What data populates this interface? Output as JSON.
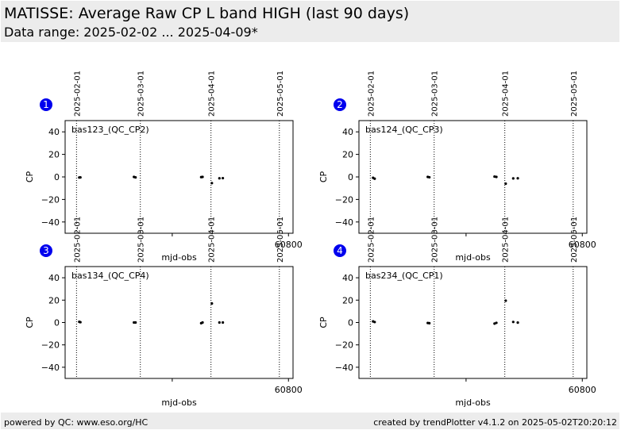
{
  "header": {
    "title": "MATISSE: Average Raw CP L band HIGH (last 90 days)",
    "subtitle": "Data range: 2025-02-02 ... 2025-04-09*"
  },
  "footer": {
    "left": "powered by QC: www.eso.org/HC",
    "right": "created by trendPlotter v4.1.2 on 2025-05-02T20:20:12"
  },
  "colors": {
    "badge": "#0000ee",
    "marker": "#000000",
    "band": "#ececec"
  },
  "chart_data": [
    {
      "type": "scatter",
      "panel": "1",
      "label": "bas123_(QC_CP2)",
      "xlabel": "mjd-obs",
      "ylabel": "CP",
      "xlim": [
        60702,
        60802
      ],
      "ylim": [
        -50,
        50
      ],
      "xticks": [
        60800
      ],
      "yticks": [
        -40,
        -20,
        0,
        20,
        40
      ],
      "date_lines": [
        {
          "label": "2025-02-01",
          "mjd": 60707
        },
        {
          "label": "2025-03-01",
          "mjd": 60735
        },
        {
          "label": "2025-04-01",
          "mjd": 60766
        },
        {
          "label": "2025-05-01",
          "mjd": 60796
        }
      ],
      "points": [
        {
          "x": 60708.2,
          "y": -0.5
        },
        {
          "x": 60708.7,
          "y": -0.4
        },
        {
          "x": 60732.2,
          "y": 0.0
        },
        {
          "x": 60732.9,
          "y": -0.4
        },
        {
          "x": 60761.7,
          "y": -0.2
        },
        {
          "x": 60762.3,
          "y": 0.0
        },
        {
          "x": 60766.4,
          "y": -5.5
        },
        {
          "x": 60769.7,
          "y": -1.2
        },
        {
          "x": 60771.2,
          "y": -1.1
        }
      ]
    },
    {
      "type": "scatter",
      "panel": "2",
      "label": "bas124_(QC_CP3)",
      "xlabel": "mjd-obs",
      "ylabel": "CP",
      "xlim": [
        60702,
        60802
      ],
      "ylim": [
        -50,
        50
      ],
      "xticks": [
        60800
      ],
      "yticks": [
        -40,
        -20,
        0,
        20,
        40
      ],
      "date_lines": [
        {
          "label": "2025-02-01",
          "mjd": 60707
        },
        {
          "label": "2025-03-01",
          "mjd": 60735
        },
        {
          "label": "2025-04-01",
          "mjd": 60766
        },
        {
          "label": "2025-05-01",
          "mjd": 60796
        }
      ],
      "points": [
        {
          "x": 60708.2,
          "y": -0.8
        },
        {
          "x": 60708.9,
          "y": -1.6
        },
        {
          "x": 60732.2,
          "y": 0.0
        },
        {
          "x": 60732.9,
          "y": -0.3
        },
        {
          "x": 60761.5,
          "y": 0.3
        },
        {
          "x": 60762.3,
          "y": 0.0
        },
        {
          "x": 60766.4,
          "y": -6.0
        },
        {
          "x": 60769.7,
          "y": -1.3
        },
        {
          "x": 60771.7,
          "y": -1.2
        }
      ]
    },
    {
      "type": "scatter",
      "panel": "3",
      "label": "bas134_(QC_CP4)",
      "xlabel": "mjd-obs",
      "ylabel": "CP",
      "xlim": [
        60702,
        60802
      ],
      "ylim": [
        -50,
        50
      ],
      "xticks": [
        60800
      ],
      "yticks": [
        -40,
        -20,
        0,
        20,
        40
      ],
      "date_lines": [
        {
          "label": "2025-02-01",
          "mjd": 60707
        },
        {
          "label": "2025-03-01",
          "mjd": 60735
        },
        {
          "label": "2025-04-01",
          "mjd": 60766
        },
        {
          "label": "2025-05-01",
          "mjd": 60796
        }
      ],
      "points": [
        {
          "x": 60708.2,
          "y": 0.6
        },
        {
          "x": 60708.7,
          "y": 0.3
        },
        {
          "x": 60732.2,
          "y": 0.0
        },
        {
          "x": 60732.9,
          "y": 0.0
        },
        {
          "x": 60761.7,
          "y": -0.6
        },
        {
          "x": 60762.3,
          "y": 0.0
        },
        {
          "x": 60766.4,
          "y": 17.0
        },
        {
          "x": 60769.7,
          "y": 0.0
        },
        {
          "x": 60771.2,
          "y": 0.0
        }
      ]
    },
    {
      "type": "scatter",
      "panel": "4",
      "label": "bas234_(QC_CP1)",
      "xlabel": "mjd-obs",
      "ylabel": "CP",
      "xlim": [
        60702,
        60802
      ],
      "ylim": [
        -50,
        50
      ],
      "xticks": [
        60800
      ],
      "yticks": [
        -40,
        -20,
        0,
        20,
        40
      ],
      "date_lines": [
        {
          "label": "2025-02-01",
          "mjd": 60707
        },
        {
          "label": "2025-03-01",
          "mjd": 60735
        },
        {
          "label": "2025-04-01",
          "mjd": 60766
        },
        {
          "label": "2025-05-01",
          "mjd": 60796
        }
      ],
      "points": [
        {
          "x": 60708.2,
          "y": 1.0
        },
        {
          "x": 60708.9,
          "y": 0.4
        },
        {
          "x": 60732.2,
          "y": -0.4
        },
        {
          "x": 60732.9,
          "y": -0.6
        },
        {
          "x": 60761.5,
          "y": -1.0
        },
        {
          "x": 60762.3,
          "y": -0.3
        },
        {
          "x": 60766.4,
          "y": 19.5
        },
        {
          "x": 60769.7,
          "y": 0.5
        },
        {
          "x": 60771.7,
          "y": -0.1
        }
      ]
    }
  ]
}
